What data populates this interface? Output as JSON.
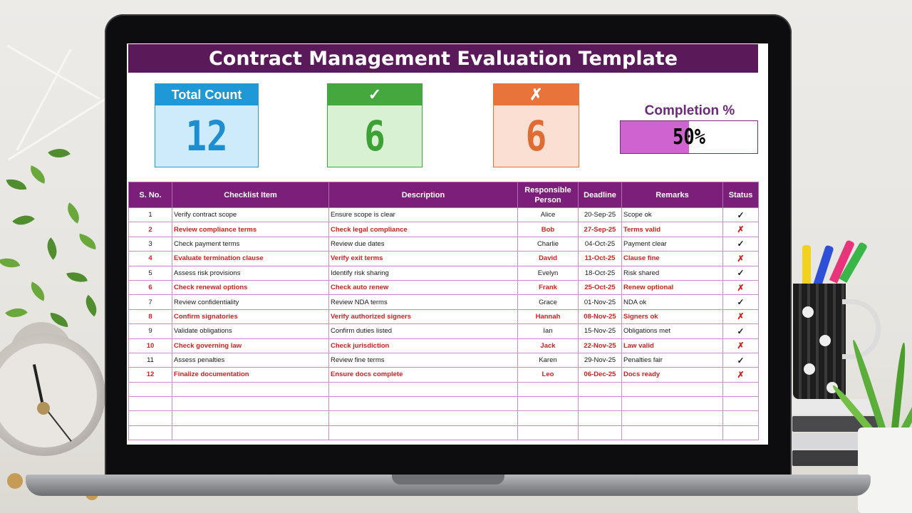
{
  "app": {
    "title": "Contract Management Evaluation Template"
  },
  "summary": {
    "total_label": "Total Count",
    "total_value": "12",
    "done_label": "✓",
    "done_value": "6",
    "pending_label": "✗",
    "pending_value": "6",
    "completion_label": "Completion %",
    "completion_text": "50%",
    "completion_fraction": 0.5
  },
  "table": {
    "headers": [
      "S. No.",
      "Checklist Item",
      "Description",
      "Responsible Person",
      "Deadline",
      "Remarks",
      "Status"
    ],
    "rows": [
      {
        "no": "1",
        "item": "Verify contract scope",
        "desc": "Ensure scope is clear",
        "person": "Alice",
        "deadline": "20-Sep-25",
        "remarks": "Scope ok",
        "status": "✓"
      },
      {
        "no": "2",
        "item": "Review compliance terms",
        "desc": "Check legal compliance",
        "person": "Bob",
        "deadline": "27-Sep-25",
        "remarks": "Terms valid",
        "status": "✗"
      },
      {
        "no": "3",
        "item": "Check payment terms",
        "desc": "Review due dates",
        "person": "Charlie",
        "deadline": "04-Oct-25",
        "remarks": "Payment clear",
        "status": "✓"
      },
      {
        "no": "4",
        "item": "Evaluate termination clause",
        "desc": "Verify exit terms",
        "person": "David",
        "deadline": "11-Oct-25",
        "remarks": "Clause fine",
        "status": "✗"
      },
      {
        "no": "5",
        "item": "Assess risk provisions",
        "desc": "Identify risk sharing",
        "person": "Evelyn",
        "deadline": "18-Oct-25",
        "remarks": "Risk shared",
        "status": "✓"
      },
      {
        "no": "6",
        "item": "Check renewal options",
        "desc": "Check auto renew",
        "person": "Frank",
        "deadline": "25-Oct-25",
        "remarks": "Renew optional",
        "status": "✗"
      },
      {
        "no": "7",
        "item": "Review confidentiality",
        "desc": "Review NDA terms",
        "person": "Grace",
        "deadline": "01-Nov-25",
        "remarks": "NDA ok",
        "status": "✓"
      },
      {
        "no": "8",
        "item": "Confirm signatories",
        "desc": "Verify authorized signers",
        "person": "Hannah",
        "deadline": "08-Nov-25",
        "remarks": "Signers ok",
        "status": "✗"
      },
      {
        "no": "9",
        "item": "Validate obligations",
        "desc": "Confirm duties listed",
        "person": "Ian",
        "deadline": "15-Nov-25",
        "remarks": "Obligations met",
        "status": "✓"
      },
      {
        "no": "10",
        "item": "Check governing law",
        "desc": "Check jurisdiction",
        "person": "Jack",
        "deadline": "22-Nov-25",
        "remarks": "Law valid",
        "status": "✗"
      },
      {
        "no": "11",
        "item": "Assess penalties",
        "desc": "Review fine terms",
        "person": "Karen",
        "deadline": "29-Nov-25",
        "remarks": "Penalties fair",
        "status": "✓"
      },
      {
        "no": "12",
        "item": "Finalize documentation",
        "desc": "Ensure docs complete",
        "person": "Leo",
        "deadline": "06-Dec-25",
        "remarks": "Docs ready",
        "status": "✗"
      }
    ],
    "empty_rows": 4
  },
  "colors": {
    "title_bg": "#5a1a5a",
    "header_bg": "#7b1f7b",
    "alt_text": "#d61f1f",
    "ok": "#1e9c2c",
    "no": "#e01a1a",
    "completion_fill": "#cf63cf"
  },
  "icons": {
    "done": "check-icon",
    "pending": "cross-icon"
  }
}
